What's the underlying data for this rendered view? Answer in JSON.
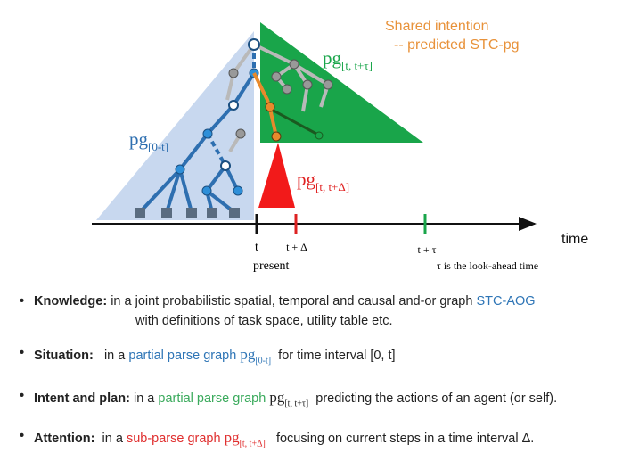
{
  "diagram": {
    "shared_intention": [
      "Shared intention",
      "-- predicted STC-pg"
    ],
    "pg_past": {
      "base": "pg",
      "sub": "[0-t]"
    },
    "pg_future": {
      "base": "pg",
      "sub": "[t, t+τ]"
    },
    "pg_attention": {
      "base": "pg",
      "sub": "[t, t+Δ]"
    },
    "axis_label": "time",
    "tick_labels": [
      "t",
      "t + Δ",
      "t + τ"
    ],
    "present": "present",
    "lookahead_note": "τ is the look-ahead time"
  },
  "bullets": [
    {
      "term": "Knowledge:",
      "text": "in a joint probabilistic spatial, temporal and causal and-or graph",
      "highlight": "STC-AOG",
      "line2": "with definitions of task space, utility table etc."
    },
    {
      "term": "Situation:",
      "text": "in a",
      "highlight": "partial parse graph",
      "pg": {
        "base": "pg",
        "sub": "[0-t]"
      },
      "rest": "for time interval [0, t]"
    },
    {
      "term": "Intent and plan:",
      "text": "in a",
      "highlight": "partial parse graph",
      "pg": {
        "base": "pg",
        "sub": "[t, t+τ]"
      },
      "rest": "predicting the actions of an agent (or self)."
    },
    {
      "term": "Attention:",
      "text": "in a",
      "highlight": "sub-parse graph",
      "pg": {
        "base": "pg",
        "sub": "[t, t+Δ]"
      },
      "rest": "focusing on current steps in a time interval Δ."
    }
  ]
}
